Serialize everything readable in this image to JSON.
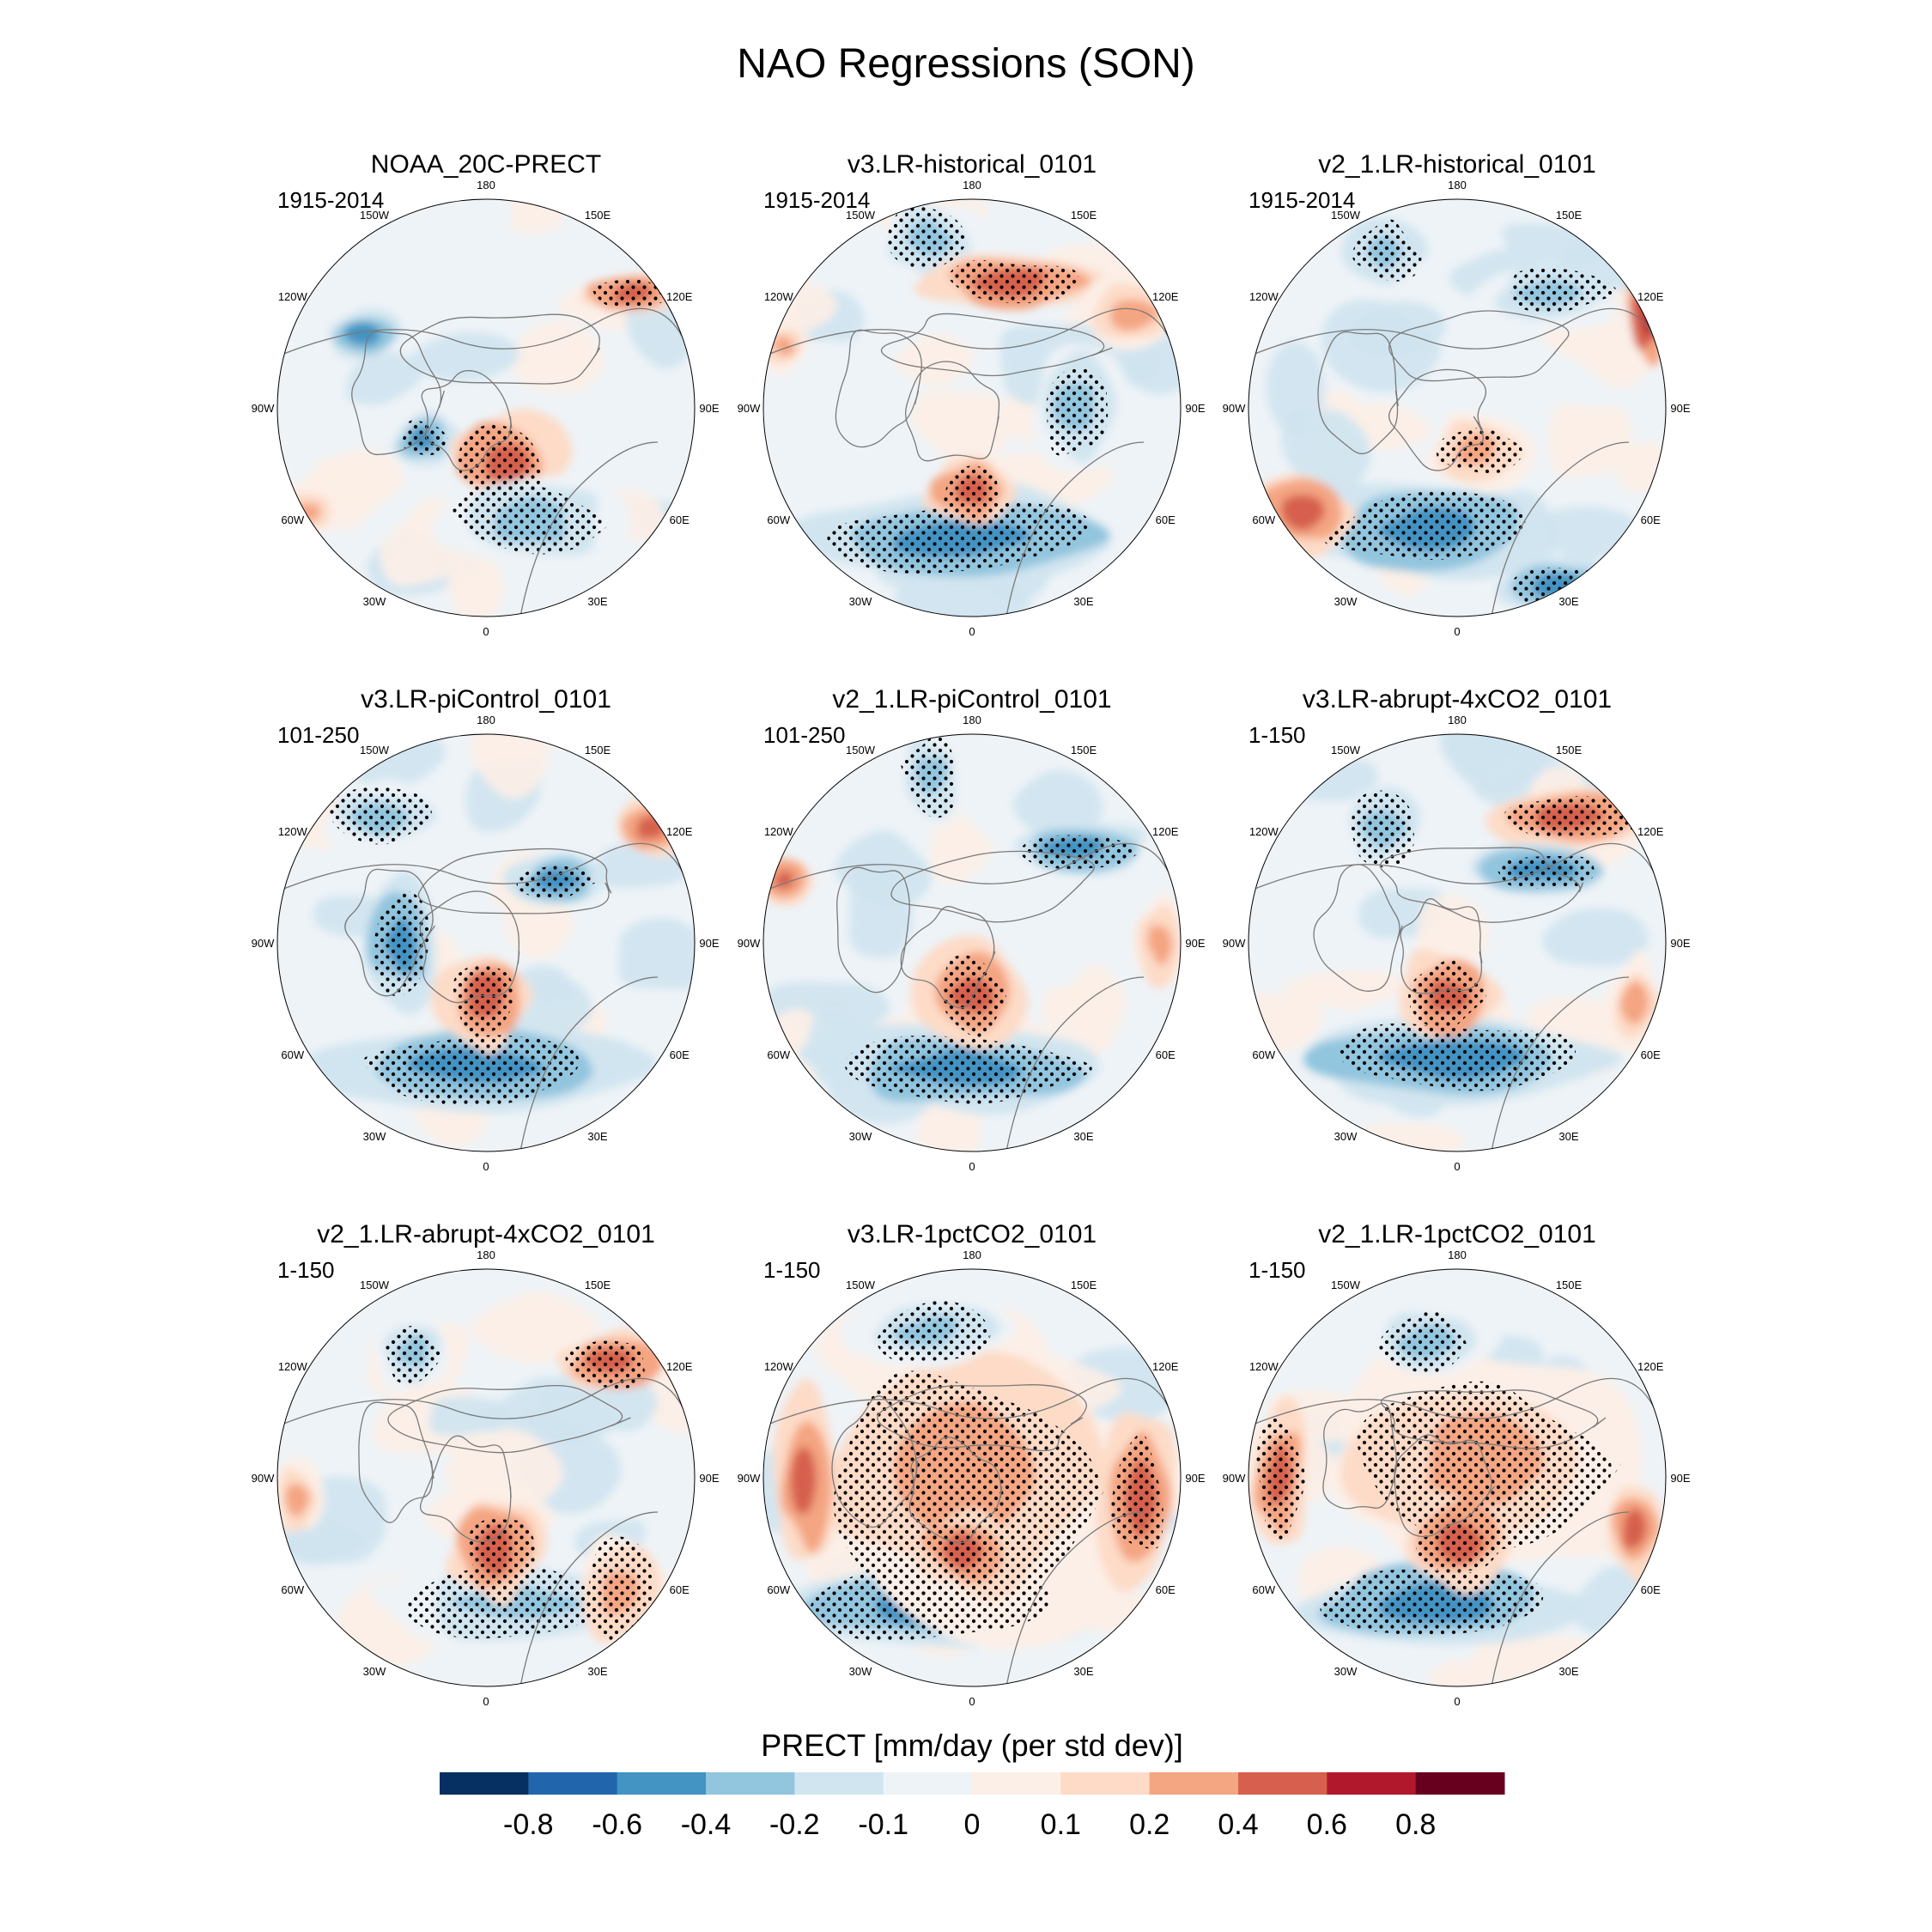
{
  "figure": {
    "title": "NAO Regressions (SON)",
    "colorbar": {
      "label": "PRECT [mm/day (per std dev)]",
      "colors": [
        "#053061",
        "#2166ac",
        "#4393c3",
        "#92c5de",
        "#d1e5f0",
        "#eef3f7",
        "#fcefe7",
        "#fddbc7",
        "#f4a582",
        "#d6604d",
        "#b2182b",
        "#67001f"
      ],
      "tick_labels": [
        "-0.8",
        "-0.6",
        "-0.4",
        "-0.2",
        "-0.1",
        "0",
        "0.1",
        "0.2",
        "0.4",
        "0.6",
        "0.8"
      ]
    },
    "lon_labels": [
      "180",
      "150E",
      "120E",
      "90E",
      "60E",
      "30E",
      "0",
      "30W",
      "60W",
      "90W",
      "120W",
      "150W"
    ],
    "panels": [
      {
        "title": "NOAA_20C-PRECT",
        "period": "1915-2014"
      },
      {
        "title": "v3.LR-historical_0101",
        "period": "1915-2014"
      },
      {
        "title": "v2_1.LR-historical_0101",
        "period": "1915-2014"
      },
      {
        "title": "v3.LR-piControl_0101",
        "period": "101-250"
      },
      {
        "title": "v2_1.LR-piControl_0101",
        "period": "101-250"
      },
      {
        "title": "v3.LR-abrupt-4xCO2_0101",
        "period": "1-150"
      },
      {
        "title": "v2_1.LR-abrupt-4xCO2_0101",
        "period": "1-150"
      },
      {
        "title": "v3.LR-1pctCO2_0101",
        "period": "1-150"
      },
      {
        "title": "v2_1.LR-1pctCO2_0101",
        "period": "1-150"
      }
    ]
  }
}
